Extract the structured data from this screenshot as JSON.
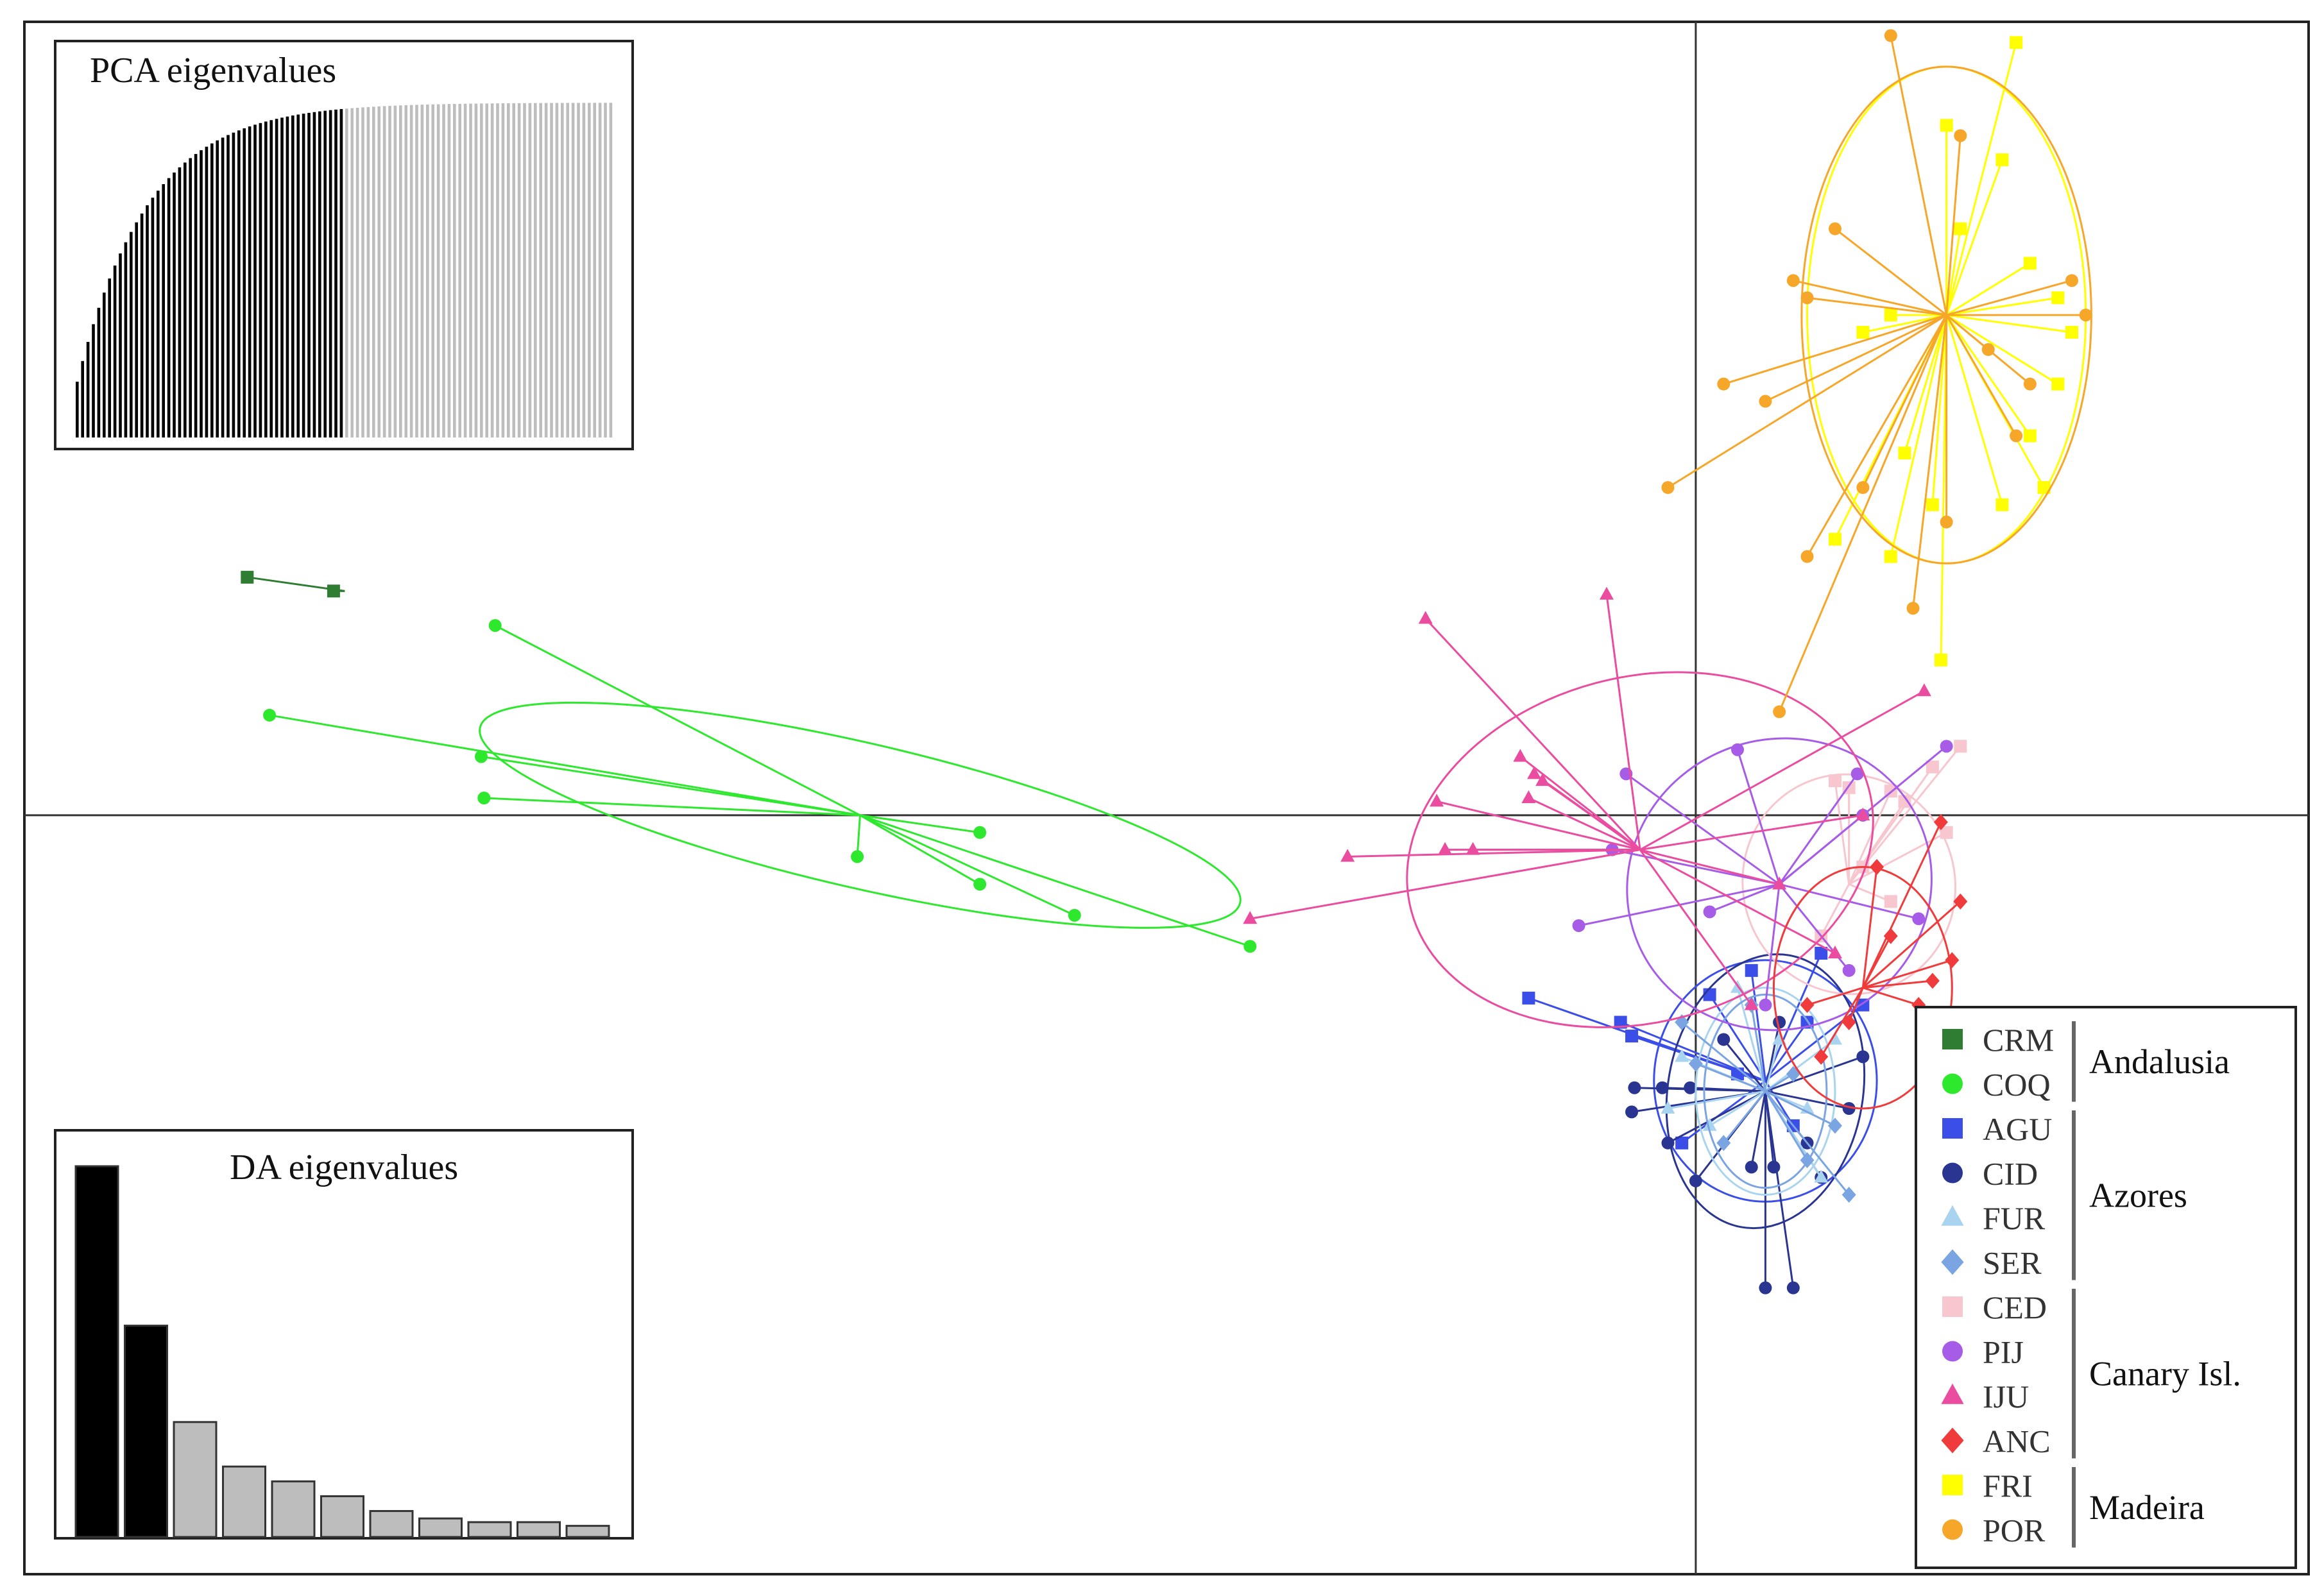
{
  "chart_data": {
    "type": "scatter",
    "subtype": "DAPC scatterplot",
    "title": "",
    "xlabel": "",
    "ylabel": "",
    "xlim": [
      -6,
      2.2
    ],
    "ylim": [
      -2.2,
      2.3
    ],
    "axis_lines": {
      "x": 0,
      "y": 0
    },
    "legend_position": "bottom-right",
    "groups": [
      {
        "code": "CRM",
        "color": "#2e7d32",
        "shape": "square",
        "region": "Andalusia",
        "centroid": [
          -4.85,
          0.65
        ],
        "points": [
          [
            -5.2,
            0.69
          ],
          [
            -4.89,
            0.65
          ]
        ]
      },
      {
        "code": "COQ",
        "color": "#2ee82e",
        "shape": "circle",
        "region": "Andalusia",
        "centroid": [
          -3.0,
          0.0
        ],
        "ellipse": {
          "rx": 1.4,
          "ry": 0.21,
          "angle": 13
        },
        "points": [
          [
            -4.31,
            0.55
          ],
          [
            -5.12,
            0.29
          ],
          [
            -4.36,
            0.17
          ],
          [
            -4.35,
            0.05
          ],
          [
            -2.57,
            -0.05
          ],
          [
            -3.01,
            -0.12
          ],
          [
            -2.57,
            -0.2
          ],
          [
            -2.23,
            -0.29
          ],
          [
            -1.6,
            -0.38
          ]
        ]
      },
      {
        "code": "AGU",
        "color": "#3b4ee8",
        "shape": "square",
        "region": "Azores",
        "centroid": [
          0.25,
          -0.77
        ],
        "ellipse": {
          "rx": 0.4,
          "ry": 0.35,
          "angle": 0
        },
        "points": [
          [
            -0.6,
            -0.53
          ],
          [
            -0.27,
            -0.6
          ],
          [
            -0.23,
            -0.64
          ],
          [
            0.05,
            -0.52
          ],
          [
            0.2,
            -0.45
          ],
          [
            0.4,
            -0.6
          ],
          [
            0.15,
            -0.75
          ],
          [
            0.35,
            -0.9
          ],
          [
            -0.05,
            -0.95
          ],
          [
            0.45,
            -0.4
          ],
          [
            0.6,
            -0.55
          ]
        ]
      },
      {
        "code": "CID",
        "color": "#2a3591",
        "shape": "circle",
        "region": "Azores",
        "centroid": [
          0.25,
          -0.8
        ],
        "ellipse": {
          "rx": 0.35,
          "ry": 0.4,
          "angle": 10
        },
        "points": [
          [
            -0.22,
            -0.79
          ],
          [
            -0.12,
            -0.79
          ],
          [
            -0.02,
            -0.79
          ],
          [
            -0.23,
            -0.86
          ],
          [
            -0.1,
            -0.95
          ],
          [
            0.0,
            -1.06
          ],
          [
            0.2,
            -1.02
          ],
          [
            0.28,
            -1.02
          ],
          [
            0.4,
            -0.95
          ],
          [
            0.55,
            -0.85
          ],
          [
            0.45,
            -1.05
          ],
          [
            0.25,
            -1.37
          ],
          [
            0.35,
            -1.37
          ],
          [
            0.1,
            -0.65
          ],
          [
            0.6,
            -0.7
          ],
          [
            0.3,
            -0.6
          ]
        ]
      },
      {
        "code": "FUR",
        "color": "#a9d4ef",
        "shape": "triangle",
        "region": "Azores",
        "centroid": [
          0.25,
          -0.8
        ],
        "ellipse": {
          "rx": 0.25,
          "ry": 0.3,
          "angle": 0
        },
        "points": [
          [
            -0.05,
            -0.7
          ],
          [
            0.05,
            -0.9
          ],
          [
            0.4,
            -0.85
          ],
          [
            0.5,
            -0.65
          ],
          [
            0.15,
            -0.5
          ],
          [
            -0.1,
            -0.85
          ],
          [
            0.45,
            -1.05
          ],
          [
            0.3,
            -0.65
          ]
        ]
      },
      {
        "code": "SER",
        "color": "#7ba4e3",
        "shape": "diamond",
        "region": "Azores",
        "centroid": [
          0.25,
          -0.8
        ],
        "ellipse": {
          "rx": 0.22,
          "ry": 0.28,
          "angle": 0
        },
        "points": [
          [
            0.0,
            -0.72
          ],
          [
            0.1,
            -0.95
          ],
          [
            0.35,
            -0.75
          ],
          [
            0.5,
            -0.9
          ],
          [
            0.2,
            -0.55
          ],
          [
            -0.05,
            -0.6
          ],
          [
            0.55,
            -1.1
          ],
          [
            0.4,
            -1.0
          ]
        ]
      },
      {
        "code": "CED",
        "color": "#f7c6cf",
        "shape": "square",
        "region": "Canary Isl.",
        "centroid": [
          0.55,
          -0.2
        ],
        "ellipse": {
          "rx": 0.38,
          "ry": 0.32,
          "angle": -20
        },
        "points": [
          [
            0.55,
            0.08
          ],
          [
            0.7,
            0.07
          ],
          [
            0.75,
            0.04
          ],
          [
            0.85,
            0.14
          ],
          [
            0.95,
            0.2
          ],
          [
            0.6,
            -0.15
          ],
          [
            0.45,
            -0.35
          ],
          [
            0.7,
            -0.25
          ],
          [
            0.9,
            -0.05
          ],
          [
            0.5,
            0.1
          ]
        ]
      },
      {
        "code": "PIJ",
        "color": "#a65ce6",
        "shape": "circle",
        "region": "Canary Isl.",
        "centroid": [
          0.3,
          -0.2
        ],
        "ellipse": {
          "rx": 0.55,
          "ry": 0.42,
          "angle": -20
        },
        "points": [
          [
            0.15,
            0.19
          ],
          [
            -0.25,
            0.12
          ],
          [
            0.58,
            0.12
          ],
          [
            0.9,
            0.2
          ],
          [
            0.6,
            0.0
          ],
          [
            -0.3,
            -0.1
          ],
          [
            -0.42,
            -0.32
          ],
          [
            0.05,
            -0.28
          ],
          [
            0.25,
            -0.55
          ],
          [
            0.8,
            -0.3
          ],
          [
            0.55,
            -0.45
          ]
        ]
      },
      {
        "code": "IJU",
        "color": "#ea4c9f",
        "shape": "triangle",
        "region": "Canary Isl.",
        "centroid": [
          -0.2,
          -0.1
        ],
        "ellipse": {
          "rx": 0.85,
          "ry": 0.5,
          "angle": -15
        },
        "points": [
          [
            -0.97,
            0.57
          ],
          [
            -0.32,
            0.64
          ],
          [
            -0.63,
            0.17
          ],
          [
            -0.58,
            0.12
          ],
          [
            -0.55,
            0.1
          ],
          [
            -0.6,
            0.05
          ],
          [
            -0.93,
            0.04
          ],
          [
            -0.9,
            -0.1
          ],
          [
            -0.8,
            -0.1
          ],
          [
            -1.25,
            -0.12
          ],
          [
            -1.6,
            -0.3
          ],
          [
            0.82,
            0.36
          ],
          [
            0.6,
            0.0
          ],
          [
            0.3,
            -0.2
          ],
          [
            0.5,
            -0.4
          ],
          [
            0.2,
            -0.55
          ]
        ]
      },
      {
        "code": "ANC",
        "color": "#ef3b3b",
        "shape": "diamond",
        "region": "Canary Isl.",
        "centroid": [
          0.6,
          -0.5
        ],
        "ellipse": {
          "rx": 0.32,
          "ry": 0.35,
          "angle": 0
        },
        "points": [
          [
            0.88,
            -0.02
          ],
          [
            0.95,
            -0.25
          ],
          [
            0.92,
            -0.42
          ],
          [
            0.85,
            -0.48
          ],
          [
            0.8,
            -0.55
          ],
          [
            0.55,
            -0.6
          ],
          [
            0.45,
            -0.7
          ],
          [
            0.7,
            -0.35
          ],
          [
            0.65,
            -0.15
          ],
          [
            0.4,
            -0.55
          ]
        ]
      },
      {
        "code": "FRI",
        "color": "#ffff00",
        "shape": "square",
        "region": "Madeira",
        "centroid": [
          0.9,
          1.45
        ],
        "ellipse": {
          "rx": 0.5,
          "ry": 0.72,
          "angle": 0
        },
        "points": [
          [
            1.15,
            2.24
          ],
          [
            0.9,
            2.0
          ],
          [
            1.1,
            1.9
          ],
          [
            0.95,
            1.7
          ],
          [
            1.2,
            1.6
          ],
          [
            1.3,
            1.5
          ],
          [
            1.35,
            1.4
          ],
          [
            0.7,
            1.45
          ],
          [
            0.6,
            1.4
          ],
          [
            1.2,
            1.1
          ],
          [
            1.25,
            0.95
          ],
          [
            0.85,
            0.9
          ],
          [
            0.75,
            1.05
          ],
          [
            0.5,
            0.8
          ],
          [
            0.7,
            0.75
          ],
          [
            0.88,
            0.45
          ],
          [
            1.1,
            0.9
          ],
          [
            1.3,
            1.25
          ]
        ]
      },
      {
        "code": "POR",
        "color": "#f6a628",
        "shape": "circle",
        "region": "Madeira",
        "centroid": [
          0.9,
          1.45
        ],
        "ellipse": {
          "rx": 0.52,
          "ry": 0.72,
          "angle": 0
        },
        "points": [
          [
            0.7,
            2.26
          ],
          [
            0.95,
            1.97
          ],
          [
            0.5,
            1.7
          ],
          [
            0.35,
            1.55
          ],
          [
            0.4,
            1.5
          ],
          [
            1.35,
            1.55
          ],
          [
            1.4,
            1.45
          ],
          [
            0.1,
            1.25
          ],
          [
            0.25,
            1.2
          ],
          [
            1.2,
            1.25
          ],
          [
            1.15,
            1.1
          ],
          [
            0.4,
            0.75
          ],
          [
            -0.1,
            0.95
          ],
          [
            0.78,
            0.6
          ],
          [
            0.9,
            0.85
          ],
          [
            0.3,
            0.3
          ],
          [
            0.6,
            0.95
          ],
          [
            1.05,
            1.35
          ]
        ]
      }
    ],
    "legend": {
      "entries": [
        "CRM",
        "COQ",
        "AGU",
        "CID",
        "FUR",
        "SER",
        "CED",
        "PIJ",
        "IJU",
        "ANC",
        "FRI",
        "POR"
      ],
      "regions": [
        {
          "label": "Andalusia",
          "members": [
            "CRM",
            "COQ"
          ]
        },
        {
          "label": "Azores",
          "members": [
            "AGU",
            "CID",
            "FUR",
            "SER"
          ]
        },
        {
          "label": "Canary Isl.",
          "members": [
            "CED",
            "PIJ",
            "IJU",
            "ANC"
          ]
        },
        {
          "label": "Madeira",
          "members": [
            "FRI",
            "POR"
          ]
        }
      ]
    },
    "insets": [
      {
        "title": "PCA eigenvalues",
        "type": "bar",
        "position": "top-left",
        "n_bars": 100,
        "n_retained": 50,
        "retained_color": "#000000",
        "other_color": "#bdbdbd",
        "values_description": "cumulative variance, monotonically increasing then saturating"
      },
      {
        "title": "DA eigenvalues",
        "type": "bar",
        "position": "bottom-left",
        "values": [
          100,
          57,
          31,
          19,
          15,
          11,
          7,
          5,
          4,
          4,
          3
        ],
        "n_retained": 2,
        "retained_color": "#000000",
        "other_color": "#bdbdbd"
      }
    ]
  }
}
